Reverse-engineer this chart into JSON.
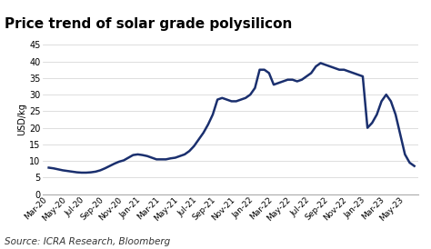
{
  "title": "Price trend of solar grade polysilicon",
  "ylabel": "USD/kg",
  "source": "Source: ICRA Research, Bloomberg",
  "line_color": "#1a2f6e",
  "line_width": 1.8,
  "background_color": "#ffffff",
  "ylim": [
    0,
    45
  ],
  "yticks": [
    0,
    5,
    10,
    15,
    20,
    25,
    30,
    35,
    40,
    45
  ],
  "x_labels": [
    "Mar-20",
    "May-20",
    "Jul-20",
    "Sep-20",
    "Nov-20",
    "Jan-21",
    "Mar-21",
    "May-21",
    "Jul-21",
    "Sep-21",
    "Nov-21",
    "Jan-22",
    "Mar-22",
    "May-22",
    "Jul-22",
    "Sep-22",
    "Nov-22",
    "Jan-23",
    "Mar-23",
    "May-23"
  ],
  "xtick_positions": [
    0,
    1,
    2,
    3,
    4,
    5,
    6,
    7,
    8,
    9,
    10,
    11,
    12,
    13,
    14,
    15,
    16,
    17,
    18,
    19
  ],
  "data_points": [
    [
      0.0,
      8.0
    ],
    [
      0.25,
      7.8
    ],
    [
      0.5,
      7.5
    ],
    [
      0.75,
      7.2
    ],
    [
      1.0,
      7.0
    ],
    [
      1.25,
      6.8
    ],
    [
      1.5,
      6.6
    ],
    [
      1.75,
      6.5
    ],
    [
      2.0,
      6.5
    ],
    [
      2.25,
      6.6
    ],
    [
      2.5,
      6.8
    ],
    [
      2.75,
      7.2
    ],
    [
      3.0,
      7.8
    ],
    [
      3.25,
      8.5
    ],
    [
      3.5,
      9.2
    ],
    [
      3.75,
      9.8
    ],
    [
      4.0,
      10.2
    ],
    [
      4.25,
      11.0
    ],
    [
      4.5,
      11.8
    ],
    [
      4.75,
      12.0
    ],
    [
      5.0,
      11.8
    ],
    [
      5.25,
      11.5
    ],
    [
      5.5,
      11.0
    ],
    [
      5.75,
      10.5
    ],
    [
      6.0,
      10.5
    ],
    [
      6.25,
      10.5
    ],
    [
      6.5,
      10.8
    ],
    [
      6.75,
      11.0
    ],
    [
      7.0,
      11.5
    ],
    [
      7.25,
      12.0
    ],
    [
      7.5,
      13.0
    ],
    [
      7.75,
      14.5
    ],
    [
      8.0,
      16.5
    ],
    [
      8.25,
      18.5
    ],
    [
      8.5,
      21.0
    ],
    [
      8.75,
      24.0
    ],
    [
      9.0,
      28.5
    ],
    [
      9.25,
      29.0
    ],
    [
      9.5,
      28.5
    ],
    [
      9.75,
      28.0
    ],
    [
      10.0,
      28.0
    ],
    [
      10.25,
      28.5
    ],
    [
      10.5,
      29.0
    ],
    [
      10.75,
      30.0
    ],
    [
      11.0,
      32.0
    ],
    [
      11.25,
      37.5
    ],
    [
      11.5,
      37.5
    ],
    [
      11.75,
      36.5
    ],
    [
      12.0,
      33.0
    ],
    [
      12.25,
      33.5
    ],
    [
      12.5,
      34.0
    ],
    [
      12.75,
      34.5
    ],
    [
      13.0,
      34.5
    ],
    [
      13.25,
      34.0
    ],
    [
      13.5,
      34.5
    ],
    [
      13.75,
      35.5
    ],
    [
      14.0,
      36.5
    ],
    [
      14.25,
      38.5
    ],
    [
      14.5,
      39.5
    ],
    [
      14.75,
      39.0
    ],
    [
      15.0,
      38.5
    ],
    [
      15.25,
      38.0
    ],
    [
      15.5,
      37.5
    ],
    [
      15.75,
      37.5
    ],
    [
      16.0,
      37.0
    ],
    [
      16.25,
      36.5
    ],
    [
      16.5,
      36.0
    ],
    [
      16.75,
      35.5
    ],
    [
      17.0,
      20.0
    ],
    [
      17.25,
      21.5
    ],
    [
      17.5,
      24.0
    ],
    [
      17.75,
      28.0
    ],
    [
      18.0,
      30.0
    ],
    [
      18.25,
      28.0
    ],
    [
      18.5,
      24.0
    ],
    [
      18.75,
      18.0
    ],
    [
      19.0,
      12.0
    ],
    [
      19.25,
      9.5
    ],
    [
      19.5,
      8.5
    ]
  ],
  "xtick_fontsize": 6.5,
  "ytick_fontsize": 7,
  "title_fontsize": 11,
  "ylabel_fontsize": 7,
  "source_fontsize": 7.5
}
